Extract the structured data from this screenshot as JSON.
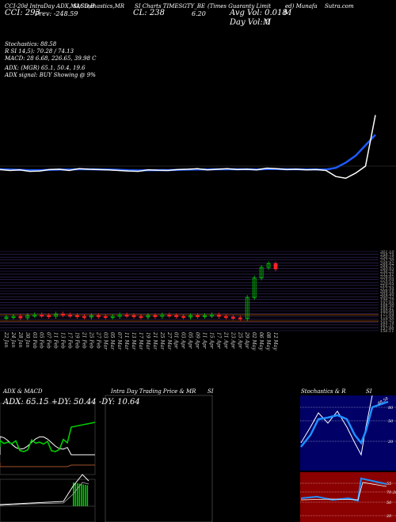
{
  "header": {
    "line1": [
      "CCI-20d IntraDay ADX,MACD,B",
      "SI,Stochastics,MR",
      "SI Charts TIMESGTY_BE",
      "(Times Guaranty Limit",
      "ed) Munafa"
    ],
    "line1b": "Sutra.com",
    "cci": "CCI: 293",
    "prev": "Prev: -248.59",
    "cl": "CL: 238",
    "chg": "6.20",
    "avg_vol": "Avg Vol: 0.018",
    "avg_unit": "M",
    "day_vol": "Day Vol: 0",
    "day_unit": "M"
  },
  "stats": [
    "Stochastics: 88.58",
    "R              SI 14,5): 70.28  /  74.13",
    "MACD: 28             6.68, 226.65, 39.98   C",
    "ADX:               (MGR) 65.1, 50.4, 19.6",
    "ADX  signal:                    BUY Showing @ 9%"
  ],
  "price_labels": [
    "261.10",
    "258.75",
    "256.25",
    "252.30",
    "248.82",
    "244.37",
    "240.93",
    "236.25",
    "232.51",
    "228.02",
    "224.04",
    "220.05",
    "216.22",
    "212.54",
    "208.16",
    "204.40",
    "200.22",
    "196.29",
    "192.65",
    "188.30",
    "184.41",
    "180.68",
    "177.04",
    "173.00",
    "169.50",
    "165.74",
    "161.31",
    "157.66",
    "156.11"
  ],
  "dates": [
    "22 Jan",
    "24 Jan",
    "28 Jan",
    "30 Jan",
    "03 Feb",
    "05 Feb",
    "07 Feb",
    "11 Feb",
    "13 Feb",
    "17 Feb",
    "19 Feb",
    "21 Feb",
    "25 Feb",
    "27 Feb",
    "03 Mar",
    "05 Mar",
    "07 Mar",
    "11 Mar",
    "13 Mar",
    "17 Mar",
    "19 Mar",
    "21 Mar",
    "25 Mar",
    "27 Mar",
    "01 Apr",
    "03 Apr",
    "05 Apr",
    "09 Apr",
    "11 Apr",
    "15 Apr",
    "17 Apr",
    "21 Apr",
    "23 Apr",
    "25 Apr",
    "29 Apr",
    "02 May",
    "06 May",
    "08 May",
    "12 May"
  ],
  "panels": {
    "adx_title": "ADX  & MACD",
    "adx_values": "ADX: 65.15  +DY: 50.44  -DY: 10.64",
    "intra_title": "Intra  Day Trading Price  & MR",
    "intra_si": "SI",
    "stoch_title": "Stochastics & R",
    "stoch_si": "SI",
    "stoch_ticks": [
      "80",
      "50",
      "20"
    ],
    "rsi_ticks": [
      "55",
      "70.28",
      "50",
      "20"
    ],
    "stoch_val": "88.58"
  },
  "colors": {
    "up": "#00cc00",
    "down": "#ff2222",
    "ma": "#1e5aff",
    "bg": "#000000",
    "rsi_bg": "#8b0000",
    "stoch_bg": "#000066"
  },
  "chart_data": [
    {
      "type": "line",
      "title": "CCI",
      "series": [
        {
          "name": "CCI",
          "values": [
            -20,
            -25,
            -22,
            -30,
            -28,
            -20,
            -18,
            -25,
            -15,
            -18,
            -20,
            -22,
            -25,
            -28,
            -30,
            -22,
            -24,
            -25,
            -20,
            -18,
            -15,
            -22,
            -18,
            -15,
            -20,
            -18,
            -22,
            -12,
            -15,
            -20,
            -18,
            -22,
            -20,
            -25,
            -60,
            -70,
            -40,
            0,
            293
          ]
        },
        {
          "name": "Avg",
          "values": [
            -18,
            -20,
            -22,
            -24,
            -24,
            -22,
            -20,
            -20,
            -18,
            -18,
            -19,
            -20,
            -22,
            -24,
            -25,
            -24,
            -23,
            -23,
            -22,
            -20,
            -19,
            -19,
            -18,
            -18,
            -18,
            -18,
            -19,
            -17,
            -17,
            -18,
            -18,
            -19,
            -19,
            -20,
            -10,
            20,
            60,
            120,
            180
          ]
        }
      ]
    },
    {
      "type": "candlestick",
      "title": "Price",
      "ylim": [
        156.11,
        261.1
      ],
      "closes": [
        174,
        175,
        173,
        176,
        177,
        176,
        175,
        178,
        177,
        176,
        175,
        174,
        176,
        175,
        174,
        175,
        177,
        176,
        175,
        174,
        176,
        175,
        177,
        176,
        175,
        174,
        176,
        175,
        176,
        177,
        175,
        174,
        173,
        172,
        200,
        226,
        240,
        245,
        238
      ]
    }
  ]
}
